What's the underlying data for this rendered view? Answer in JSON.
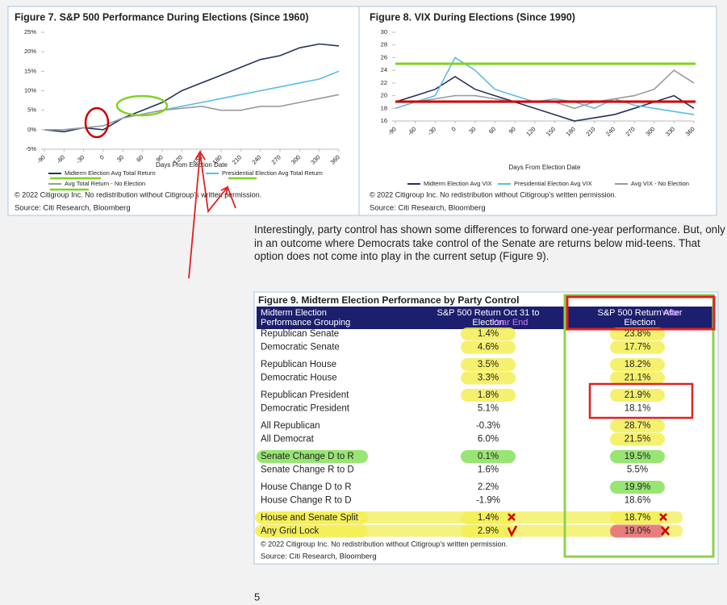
{
  "chart_data": [
    {
      "type": "line",
      "title": "Figure 7. S&P 500 Performance During Elections (Since 1960)",
      "x": [
        -90,
        -60,
        -30,
        0,
        30,
        60,
        90,
        120,
        150,
        180,
        210,
        240,
        270,
        300,
        330,
        360
      ],
      "xlim": [
        -90,
        360
      ],
      "xticks": [
        -90,
        -60,
        -30,
        0,
        30,
        60,
        90,
        120,
        150,
        180,
        210,
        240,
        270,
        300,
        330,
        360
      ],
      "xlabel": "Days From Election Date",
      "ylim": [
        -5,
        25
      ],
      "yticks": [
        {
          "value": -5,
          "label": "-5%"
        },
        {
          "value": 0,
          "label": "0%"
        },
        {
          "value": 5,
          "label": "5%"
        },
        {
          "value": 10,
          "label": "10%"
        },
        {
          "value": 15,
          "label": "15%"
        },
        {
          "value": 20,
          "label": "20%"
        },
        {
          "value": 25,
          "label": "25%"
        }
      ],
      "series": [
        {
          "name": "Midterm Election Avg Total Return",
          "color": "#26325e",
          "values": [
            0,
            -0.5,
            0.5,
            0,
            3,
            5,
            7,
            10,
            12,
            14,
            16,
            18,
            19,
            21,
            22,
            21.5
          ]
        },
        {
          "name": "Presidential Election Avg Total Return",
          "color": "#5bbbe6",
          "values": [
            0,
            0,
            0.5,
            1,
            3,
            4,
            5,
            6,
            7,
            8,
            9,
            10,
            11,
            12,
            13,
            15
          ]
        },
        {
          "name": "Avg Total Return - No Election",
          "color": "#9a9a9a",
          "values": [
            0,
            0,
            0.5,
            1,
            3,
            4,
            5,
            5.5,
            6,
            5,
            5,
            6,
            6,
            7,
            8,
            9
          ]
        }
      ],
      "footnote": "© 2022 Citigroup Inc. No redistribution without Citigroup’s written permission.",
      "source": "Source: Citi Research, Bloomberg"
    },
    {
      "type": "line",
      "title": "Figure 8. VIX During Elections (Since 1990)",
      "x": [
        -90,
        -60,
        -30,
        0,
        30,
        60,
        90,
        120,
        150,
        180,
        210,
        240,
        270,
        300,
        330,
        360
      ],
      "xlim": [
        -90,
        360
      ],
      "xticks": [
        -90,
        -60,
        -30,
        0,
        30,
        60,
        90,
        120,
        150,
        180,
        210,
        240,
        270,
        300,
        330,
        360
      ],
      "xlabel": "Days From Election Date",
      "ylim": [
        16,
        30
      ],
      "yticks": [
        16,
        18,
        20,
        22,
        24,
        26,
        28,
        30
      ],
      "series": [
        {
          "name": "Midterm Election Avg VIX",
          "color": "#26325e",
          "values": [
            19,
            20,
            21,
            23,
            21,
            20,
            19,
            18,
            17,
            16,
            16.5,
            17,
            18,
            19,
            20,
            18
          ]
        },
        {
          "name": "Presidential Election Avg VIX",
          "color": "#5bbbe6",
          "values": [
            18,
            19,
            20,
            26,
            24,
            21,
            20,
            19,
            19.5,
            19,
            18,
            19.5,
            18.5,
            18,
            17.5,
            17
          ]
        },
        {
          "name": "Avg VIX - No Election",
          "color": "#9a9a9a",
          "values": [
            19,
            19,
            19.5,
            20,
            20,
            19.5,
            19,
            19,
            19,
            18,
            19,
            19.5,
            20,
            21,
            24,
            22
          ]
        }
      ],
      "footnote": "© 2022 Citigroup Inc. No redistribution without Citigroup’s written permission.",
      "source": "Source: Citi Research, Bloomberg"
    }
  ],
  "paragraph": "Interestingly, party control has shown some differences to forward one-year performance. But, only in an outcome where Democrats take control of the Senate are returns below mid-teens. That option does not come into play in the current setup (Figure 9).",
  "table": {
    "title": "Figure 9. Midterm Election Performance by Party Control",
    "header": [
      "Midterm Election Performance Grouping",
      "S&P 500 Return Oct 31 to Election",
      "S&P 500 Return After Election"
    ],
    "handwritten": [
      "Year End",
      "Year"
    ],
    "groups": [
      [
        [
          "Republican Senate",
          "1.4%",
          "23.8%"
        ],
        [
          "Democratic Senate",
          "4.6%",
          "17.7%"
        ]
      ],
      [
        [
          "Republican House",
          "3.5%",
          "18.2%"
        ],
        [
          "Democratic House",
          "3.3%",
          "21.1%"
        ]
      ],
      [
        [
          "Republican President",
          "1.8%",
          "21.9%"
        ],
        [
          "Democratic President",
          "5.1%",
          "18.1%"
        ]
      ],
      [
        [
          "All Republican",
          "-0.3%",
          "28.7%"
        ],
        [
          "All Democrat",
          "6.0%",
          "21.5%"
        ]
      ],
      [
        [
          "Senate Change D to R",
          "0.1%",
          "19.5%"
        ],
        [
          "Senate Change R to D",
          "1.6%",
          "5.5%"
        ]
      ],
      [
        [
          "House Change D to R",
          "2.2%",
          "19.9%"
        ],
        [
          "House Change R to D",
          "-1.9%",
          "18.6%"
        ]
      ],
      [
        [
          "House and Senate Split",
          "1.4%",
          "18.7%"
        ],
        [
          "Any Grid Lock",
          "2.9%",
          "19.0%"
        ]
      ]
    ],
    "footnote": "© 2022 Citigroup Inc. No redistribution without Citigroup’s written permission.",
    "source": "Source: Citi Research, Bloomberg"
  },
  "page_number": "5"
}
